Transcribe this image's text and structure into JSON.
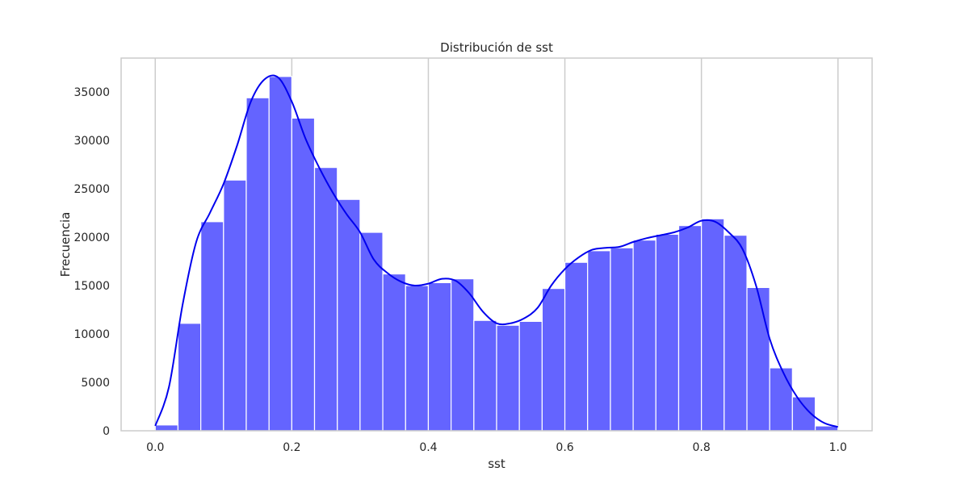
{
  "chart_data": {
    "type": "bar",
    "title": "Distribución de sst",
    "xlabel": "sst",
    "ylabel": "Frecuencia",
    "xlim": [
      -0.05,
      1.05
    ],
    "ylim": [
      0,
      38500
    ],
    "grid": "vertical",
    "legend": "none",
    "bin_width": 0.0333,
    "bins": [
      {
        "x0": 0.0,
        "x1": 0.0333,
        "value": 600
      },
      {
        "x0": 0.0333,
        "x1": 0.0667,
        "value": 11100
      },
      {
        "x0": 0.0667,
        "x1": 0.1,
        "value": 21600
      },
      {
        "x0": 0.1,
        "x1": 0.1333,
        "value": 25900
      },
      {
        "x0": 0.1333,
        "x1": 0.1667,
        "value": 34400
      },
      {
        "x0": 0.1667,
        "x1": 0.2,
        "value": 36600
      },
      {
        "x0": 0.2,
        "x1": 0.2333,
        "value": 32300
      },
      {
        "x0": 0.2333,
        "x1": 0.2667,
        "value": 27200
      },
      {
        "x0": 0.2667,
        "x1": 0.3,
        "value": 23900
      },
      {
        "x0": 0.3,
        "x1": 0.3333,
        "value": 20500
      },
      {
        "x0": 0.3333,
        "x1": 0.3667,
        "value": 16200
      },
      {
        "x0": 0.3667,
        "x1": 0.4,
        "value": 15000
      },
      {
        "x0": 0.4,
        "x1": 0.4333,
        "value": 15300
      },
      {
        "x0": 0.4333,
        "x1": 0.4667,
        "value": 15700
      },
      {
        "x0": 0.4667,
        "x1": 0.5,
        "value": 11400
      },
      {
        "x0": 0.5,
        "x1": 0.5333,
        "value": 10900
      },
      {
        "x0": 0.5333,
        "x1": 0.5667,
        "value": 11300
      },
      {
        "x0": 0.5667,
        "x1": 0.6,
        "value": 14700
      },
      {
        "x0": 0.6,
        "x1": 0.6333,
        "value": 17400
      },
      {
        "x0": 0.6333,
        "x1": 0.6667,
        "value": 18600
      },
      {
        "x0": 0.6667,
        "x1": 0.7,
        "value": 18900
      },
      {
        "x0": 0.7,
        "x1": 0.7333,
        "value": 19700
      },
      {
        "x0": 0.7333,
        "x1": 0.7667,
        "value": 20300
      },
      {
        "x0": 0.7667,
        "x1": 0.8,
        "value": 21200
      },
      {
        "x0": 0.8,
        "x1": 0.8333,
        "value": 21900
      },
      {
        "x0": 0.8333,
        "x1": 0.8667,
        "value": 20200
      },
      {
        "x0": 0.8667,
        "x1": 0.9,
        "value": 14800
      },
      {
        "x0": 0.9,
        "x1": 0.9333,
        "value": 6500
      },
      {
        "x0": 0.9333,
        "x1": 0.9667,
        "value": 3500
      },
      {
        "x0": 0.9667,
        "x1": 1.0,
        "value": 500
      }
    ],
    "kde": {
      "x": [
        0.0,
        0.02,
        0.04,
        0.06,
        0.08,
        0.1,
        0.12,
        0.14,
        0.16,
        0.18,
        0.2,
        0.22,
        0.24,
        0.26,
        0.28,
        0.3,
        0.32,
        0.34,
        0.36,
        0.38,
        0.4,
        0.42,
        0.44,
        0.46,
        0.48,
        0.5,
        0.52,
        0.54,
        0.56,
        0.58,
        0.6,
        0.62,
        0.64,
        0.66,
        0.68,
        0.7,
        0.72,
        0.74,
        0.76,
        0.78,
        0.8,
        0.82,
        0.84,
        0.86,
        0.88,
        0.9,
        0.92,
        0.94,
        0.96,
        0.98,
        1.0
      ],
      "y": [
        500,
        4500,
        13000,
        19500,
        22500,
        25500,
        29500,
        34000,
        36300,
        36500,
        34000,
        30200,
        27200,
        24600,
        22400,
        20500,
        17700,
        16300,
        15400,
        15000,
        15200,
        15700,
        15500,
        14200,
        12300,
        11100,
        11100,
        11600,
        12700,
        15000,
        16700,
        17900,
        18700,
        18900,
        19000,
        19500,
        19900,
        20200,
        20500,
        21000,
        21700,
        21600,
        20500,
        18800,
        15000,
        9500,
        6000,
        3500,
        1800,
        800,
        400
      ]
    },
    "color_bar": "#6464ff",
    "color_line": "#0000ee",
    "xticks": [
      {
        "value": 0.0,
        "label": "0.0"
      },
      {
        "value": 0.2,
        "label": "0.2"
      },
      {
        "value": 0.4,
        "label": "0.4"
      },
      {
        "value": 0.6,
        "label": "0.6"
      },
      {
        "value": 0.8,
        "label": "0.8"
      },
      {
        "value": 1.0,
        "label": "1.0"
      }
    ],
    "yticks": [
      {
        "value": 0,
        "label": "0"
      },
      {
        "value": 5000,
        "label": "5000"
      },
      {
        "value": 10000,
        "label": "10000"
      },
      {
        "value": 15000,
        "label": "15000"
      },
      {
        "value": 20000,
        "label": "20000"
      },
      {
        "value": 25000,
        "label": "25000"
      },
      {
        "value": 30000,
        "label": "30000"
      },
      {
        "value": 35000,
        "label": "35000"
      }
    ]
  }
}
